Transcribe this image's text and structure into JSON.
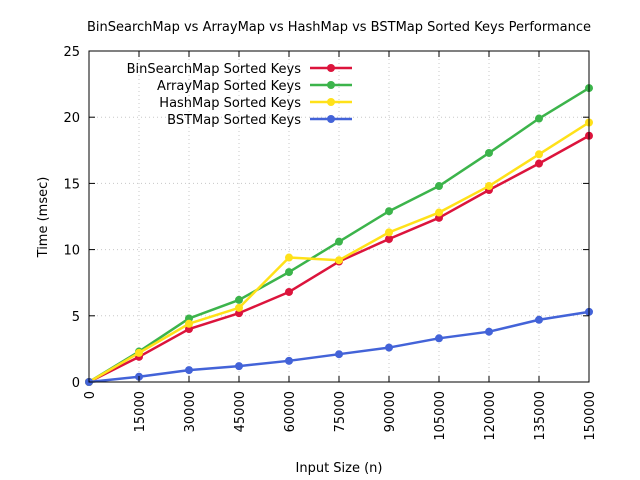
{
  "chart_data": {
    "type": "line",
    "title": "BinSearchMap vs ArrayMap vs HashMap vs BSTMap Sorted Keys Performance",
    "xlabel": "Input Size (n)",
    "ylabel": "Time (msec)",
    "xlim": [
      0,
      150000
    ],
    "ylim": [
      0,
      25
    ],
    "x_ticks": [
      0,
      15000,
      30000,
      45000,
      60000,
      75000,
      90000,
      105000,
      120000,
      135000,
      150000
    ],
    "x_tick_labels": [
      "0",
      "15000",
      "30000",
      "45000",
      "60000",
      "75000",
      "90000",
      "105000",
      "120000",
      "135000",
      "150000"
    ],
    "y_ticks": [
      0,
      5,
      10,
      15,
      20,
      25
    ],
    "y_tick_labels": [
      "0",
      "5",
      "10",
      "15",
      "20",
      "25"
    ],
    "grid": true,
    "legend_position": "top-left",
    "x": [
      0,
      15000,
      30000,
      45000,
      60000,
      75000,
      90000,
      105000,
      120000,
      135000,
      150000
    ],
    "series": [
      {
        "name": "BinSearchMap Sorted Keys",
        "color": "#dc143c",
        "values": [
          0,
          1.9,
          4.0,
          5.2,
          6.8,
          9.1,
          10.8,
          12.4,
          14.5,
          16.5,
          18.6
        ]
      },
      {
        "name": "ArrayMap Sorted Keys",
        "color": "#3cb44b",
        "values": [
          0,
          2.3,
          4.8,
          6.2,
          8.3,
          10.6,
          12.9,
          14.8,
          17.3,
          19.9,
          22.2
        ]
      },
      {
        "name": "HashMap Sorted Keys",
        "color": "#ffe119",
        "values": [
          0,
          2.2,
          4.4,
          5.6,
          9.4,
          9.2,
          11.3,
          12.8,
          14.8,
          17.2,
          19.6
        ]
      },
      {
        "name": "BSTMap Sorted Keys",
        "color": "#4363d8",
        "values": [
          0,
          0.4,
          0.9,
          1.2,
          1.6,
          2.1,
          2.6,
          3.3,
          3.8,
          4.7,
          5.3
        ]
      }
    ]
  }
}
